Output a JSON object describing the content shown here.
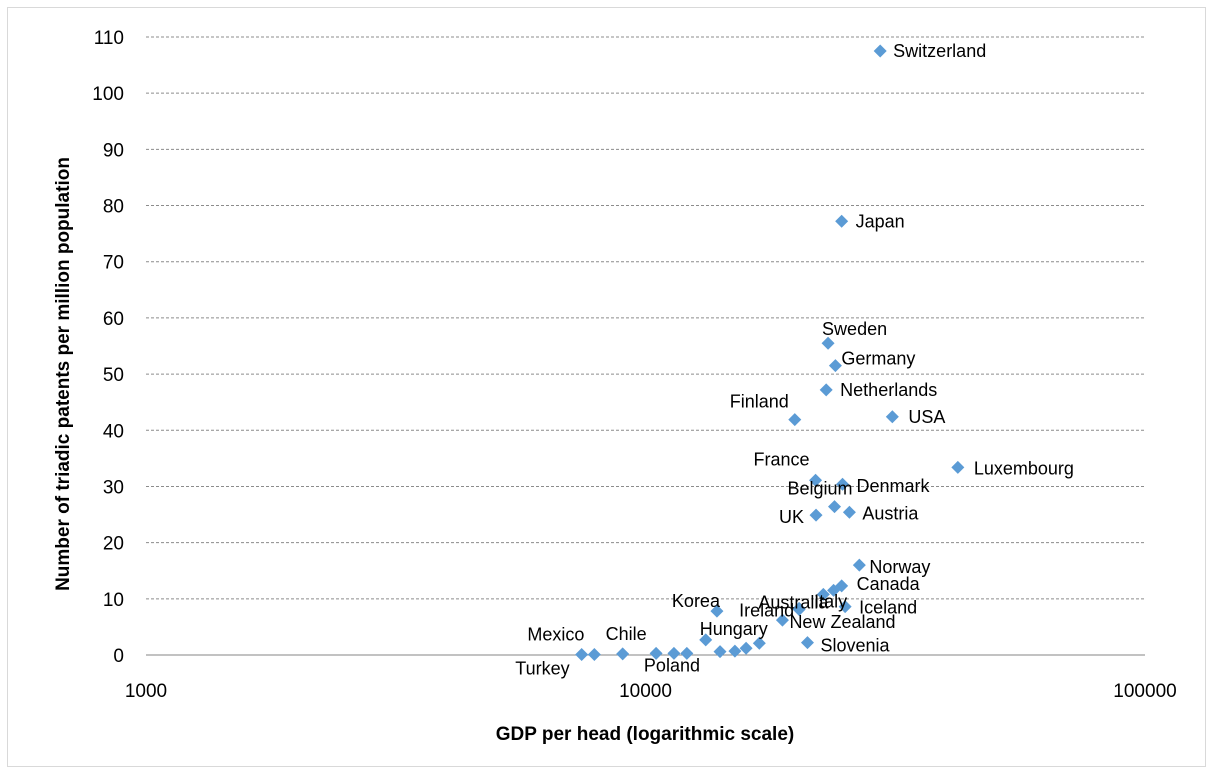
{
  "chart_data": {
    "type": "scatter",
    "title": "",
    "xlabel": "GDP per head (logarithmic scale)",
    "ylabel": "Number of triadic patents per million population",
    "xscale": "log",
    "xlim": [
      1000,
      100000
    ],
    "ylim": [
      0,
      110
    ],
    "xticks": [
      "1000",
      "10000",
      "100000"
    ],
    "yticks": [
      "0",
      "10",
      "20",
      "30",
      "40",
      "50",
      "60",
      "70",
      "80",
      "90",
      "100",
      "110"
    ],
    "grid": "horizontal",
    "legend": "none",
    "marker": "diamond",
    "marker_color": "#5b9bd5",
    "points": [
      {
        "label": "Switzerland",
        "x": 29500,
        "y": 107.5
      },
      {
        "label": "Japan",
        "x": 24700,
        "y": 77.2
      },
      {
        "label": "Sweden",
        "x": 23200,
        "y": 55.5
      },
      {
        "label": "Germany",
        "x": 24000,
        "y": 51.5
      },
      {
        "label": "Netherlands",
        "x": 23000,
        "y": 47.2
      },
      {
        "label": "Finland",
        "x": 19900,
        "y": 41.9
      },
      {
        "label": "USA",
        "x": 31200,
        "y": 42.4
      },
      {
        "label": "France",
        "x": 21900,
        "y": 31.1
      },
      {
        "label": "Luxembourg",
        "x": 42200,
        "y": 33.4
      },
      {
        "label": "Denmark",
        "x": 24800,
        "y": 30.4
      },
      {
        "label": "Belgium",
        "x": 23900,
        "y": 26.4
      },
      {
        "label": "Austria",
        "x": 25600,
        "y": 25.4
      },
      {
        "label": "UK",
        "x": 21950,
        "y": 24.9
      },
      {
        "label": "Norway",
        "x": 26800,
        "y": 16.0
      },
      {
        "label": "Australia",
        "x": 22700,
        "y": 10.8
      },
      {
        "label": "",
        "x": 23800,
        "y": 11.5
      },
      {
        "label": "Canada",
        "x": 24700,
        "y": 12.3
      },
      {
        "label": "Italy",
        "x": 20300,
        "y": 8.3
      },
      {
        "label": "Iceland",
        "x": 25100,
        "y": 8.6
      },
      {
        "label": "Korea",
        "x": 13900,
        "y": 7.8
      },
      {
        "label": "Ireland",
        "x": 20300,
        "y": 8.1
      },
      {
        "label": "New Zealand",
        "x": 18800,
        "y": 6.2
      },
      {
        "label": "Slovenia",
        "x": 21100,
        "y": 2.2
      },
      {
        "label": "Hungary",
        "x": 13200,
        "y": 2.7
      },
      {
        "label": "",
        "x": 16900,
        "y": 2.1
      },
      {
        "label": "",
        "x": 15900,
        "y": 1.2
      },
      {
        "label": "",
        "x": 15100,
        "y": 0.7
      },
      {
        "label": "",
        "x": 14100,
        "y": 0.6
      },
      {
        "label": "Poland",
        "x": 11400,
        "y": 0.3
      },
      {
        "label": "",
        "x": 12100,
        "y": 0.3
      },
      {
        "label": "",
        "x": 10500,
        "y": 0.3
      },
      {
        "label": "Chile",
        "x": 9000,
        "y": 0.2
      },
      {
        "label": "Mexico",
        "x": 7900,
        "y": 0.1
      },
      {
        "label": "Turkey",
        "x": 7450,
        "y": 0.1
      }
    ]
  }
}
